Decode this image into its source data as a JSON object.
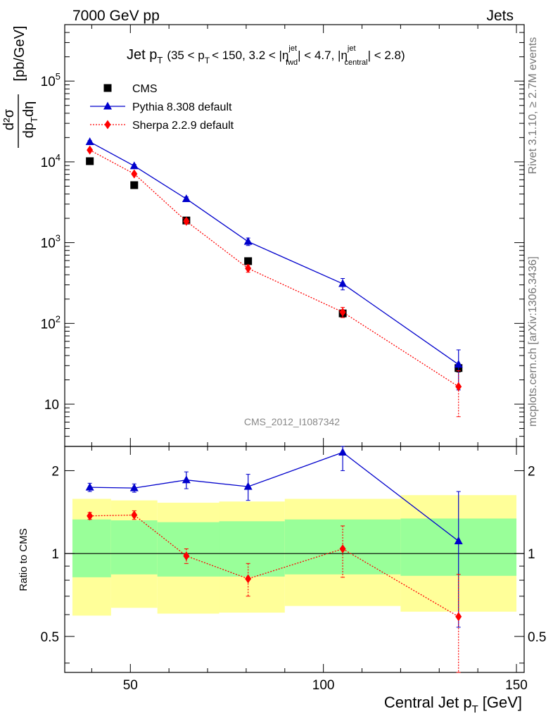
{
  "header": {
    "left": "7000 GeV pp",
    "right": "Jets",
    "side_top": "Rivet 3.1.10, ≥ 2.7M events",
    "side_bottom": "mcplots.cern.ch [arXiv:1306.3436]",
    "watermark": "CMS_2012_I1087342"
  },
  "chart_data": [
    {
      "type": "scatter",
      "title": "Jet p_T (35 < p_T < 150, 3.2 < |η_fwd^jet| < 4.7, |η_central^jet| < 2.8)",
      "title_parts": {
        "main": "Jet p",
        "main_sub": "T",
        "range_open": "(35 < p",
        "range_sub": "T",
        "range_mid": "< 150, 3.2 < |η",
        "eta_fwd_sup": "jet",
        "eta_fwd_sub": "fwd",
        "eta_mid": "| < 4.7, |η",
        "eta_central_sup": "jet",
        "eta_central_sub": "central",
        "range_close": "| < 2.8)"
      },
      "ylabel": "d²σ/dp_T dη [pb/GeV]",
      "ylabel_parts": {
        "num": "d²σ",
        "den": "dp",
        "den_sub": "T",
        "den_end": "dη",
        "unit": "[pb/GeV]"
      },
      "yscale": "log",
      "ylim": [
        3,
        500000
      ],
      "xlim": [
        33,
        152
      ],
      "yticks": [
        {
          "value": 10,
          "base": "10",
          "exp": ""
        },
        {
          "value": 100,
          "base": "10",
          "exp": "2"
        },
        {
          "value": 1000,
          "base": "10",
          "exp": "3"
        },
        {
          "value": 10000,
          "base": "10",
          "exp": "4"
        },
        {
          "value": 100000,
          "base": "10",
          "exp": "5"
        }
      ],
      "legend_position": "top-left",
      "series": [
        {
          "name": "CMS",
          "color": "#000000",
          "marker": "square",
          "line": "none",
          "x": [
            39.5,
            51,
            64.5,
            80.5,
            105,
            135
          ],
          "y": [
            10200,
            5150,
            1880,
            590,
            133,
            28
          ],
          "yerr": [
            300,
            200,
            80,
            30,
            8,
            3
          ]
        },
        {
          "name": "Pythia 8.308 default",
          "color": "#0000cc",
          "marker": "triangle",
          "line": "solid",
          "x": [
            39.5,
            51,
            64.5,
            80.5,
            105,
            135
          ],
          "y": [
            17700,
            8900,
            3480,
            1030,
            310,
            31
          ],
          "yerr": [
            600,
            400,
            200,
            110,
            50,
            16
          ]
        },
        {
          "name": "Sherpa 2.2.9 default",
          "color": "#ff0000",
          "marker": "diamond",
          "line": "dotted",
          "x": [
            39.5,
            51,
            64.5,
            80.5,
            105,
            135
          ],
          "y": [
            14000,
            7100,
            1840,
            480,
            138,
            16.5
          ],
          "yerr": [
            400,
            300,
            120,
            50,
            20,
            9.5
          ]
        }
      ]
    },
    {
      "type": "scatter",
      "ylabel": "Ratio to CMS",
      "xlabel": "Central Jet p_T [GeV]",
      "xlabel_parts": {
        "main": "Central Jet p",
        "sub": "T",
        "unit": "[GeV]"
      },
      "yscale": "log",
      "ylim": [
        0.37,
        2.45
      ],
      "xlim": [
        33,
        152
      ],
      "yticks": [
        {
          "value": 0.5,
          "label": "0.5"
        },
        {
          "value": 1,
          "label": "1"
        },
        {
          "value": 2,
          "label": "2"
        }
      ],
      "xticks": [
        {
          "value": 50,
          "label": "50"
        },
        {
          "value": 100,
          "label": "100"
        },
        {
          "value": 150,
          "label": "150"
        }
      ],
      "reference_line": 1,
      "bands": [
        {
          "x0": 35,
          "x1": 45,
          "yellow": [
            0.595,
            1.58
          ],
          "green": [
            0.82,
            1.33
          ]
        },
        {
          "x0": 45,
          "x1": 57,
          "yellow": [
            0.635,
            1.56
          ],
          "green": [
            0.84,
            1.32
          ]
        },
        {
          "x0": 57,
          "x1": 73,
          "yellow": [
            0.605,
            1.53
          ],
          "green": [
            0.825,
            1.3
          ]
        },
        {
          "x0": 73,
          "x1": 90,
          "yellow": [
            0.61,
            1.545
          ],
          "green": [
            0.825,
            1.31
          ]
        },
        {
          "x0": 90,
          "x1": 120,
          "yellow": [
            0.645,
            1.58
          ],
          "green": [
            0.84,
            1.33
          ]
        },
        {
          "x0": 120,
          "x1": 150,
          "yellow": [
            0.615,
            1.63
          ],
          "green": [
            0.83,
            1.34
          ]
        }
      ],
      "series": [
        {
          "name": "Pythia 8.308 default",
          "color": "#0000cc",
          "marker": "triangle",
          "line": "solid",
          "x": [
            39.5,
            51,
            64.5,
            80.5,
            105,
            135
          ],
          "y": [
            1.74,
            1.73,
            1.85,
            1.75,
            2.33,
            1.11
          ],
          "yerr": [
            0.06,
            0.06,
            0.13,
            0.19,
            0.33,
            0.57
          ]
        },
        {
          "name": "Sherpa 2.2.9 default",
          "color": "#ff0000",
          "marker": "diamond",
          "line": "dotted",
          "x": [
            39.5,
            51,
            64.5,
            80.5,
            105,
            135
          ],
          "y": [
            1.37,
            1.38,
            0.98,
            0.81,
            1.04,
            0.59
          ],
          "yerr": [
            0.04,
            0.05,
            0.06,
            0.11,
            0.22,
            0.25
          ]
        }
      ]
    }
  ],
  "colors": {
    "band_yellow": "#ffff99",
    "band_green": "#99ff99",
    "watermark": "#888888",
    "side_text": "#777777"
  }
}
